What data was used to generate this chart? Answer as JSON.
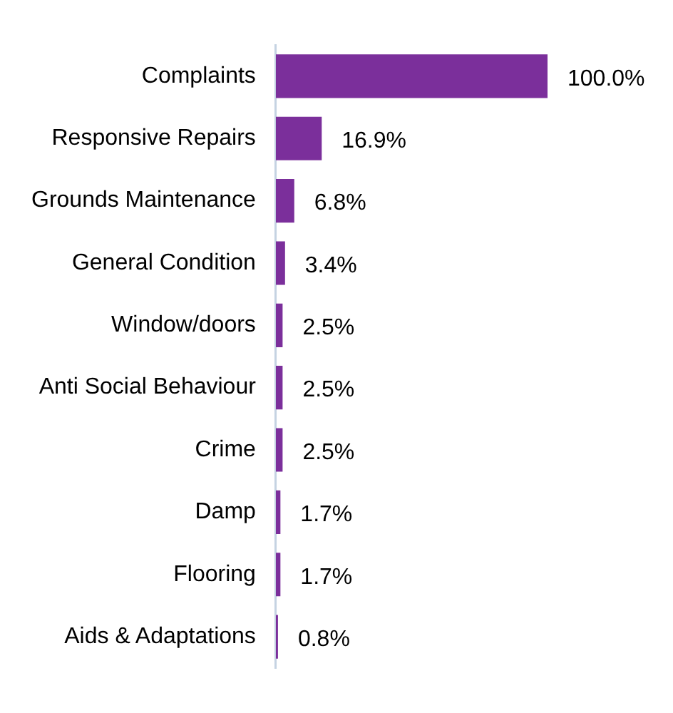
{
  "chart_data": {
    "type": "bar",
    "orientation": "horizontal",
    "categories": [
      "Complaints",
      "Responsive Repairs",
      "Grounds Maintenance",
      "General Condition",
      "Window/doors",
      "Anti Social Behaviour",
      "Crime",
      "Damp",
      "Flooring",
      "Aids & Adaptations"
    ],
    "values": [
      100.0,
      16.9,
      6.8,
      3.4,
      2.5,
      2.5,
      2.5,
      1.7,
      1.7,
      0.8
    ],
    "value_labels": [
      "100.0%",
      "16.9%",
      "6.8%",
      "3.4%",
      "2.5%",
      "2.5%",
      "2.5%",
      "1.7%",
      "1.7%",
      "0.8%"
    ],
    "color": "#7b2f9b",
    "grid": false,
    "legend": false,
    "tick_labels": "y"
  }
}
